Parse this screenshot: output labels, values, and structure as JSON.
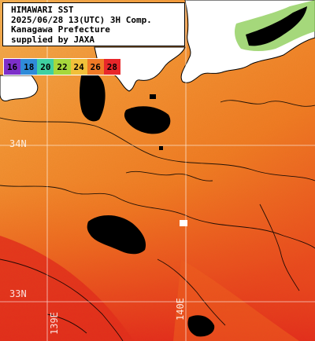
{
  "title_box": {
    "line1": "HIMAWARI SST",
    "line2": "2025/06/28 13(UTC) 3H Comp.",
    "line3": "Kanagawa Prefecture",
    "line4": "supplied by JAXA"
  },
  "legend": {
    "items": [
      {
        "label": "16",
        "color": "#7d2fc9"
      },
      {
        "label": "18",
        "color": "#2f8bd9"
      },
      {
        "label": "20",
        "color": "#3fd0a0"
      },
      {
        "label": "22",
        "color": "#a6d83c"
      },
      {
        "label": "24",
        "color": "#f1c03a"
      },
      {
        "label": "26",
        "color": "#f07a26"
      },
      {
        "label": "28",
        "color": "#e8262a"
      }
    ]
  },
  "grid_labels": {
    "lat_34": "34N",
    "lat_33": "33N",
    "lon_139": "139E",
    "lon_140": "140E"
  },
  "colors": {
    "sea_warm": "#f07a26",
    "sea_hot": "#e8262a",
    "sea_mild": "#f1a040",
    "land": "#ffffff",
    "cloud_mask": "#000000",
    "coast_green": "#8fce5a",
    "grid": "#ffffff"
  }
}
